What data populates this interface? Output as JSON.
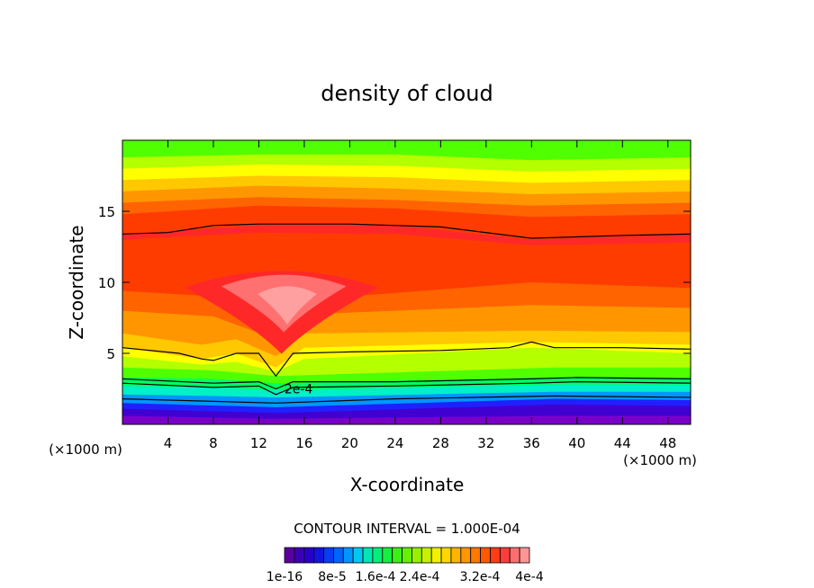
{
  "chart_data": {
    "type": "heatmap",
    "title": "density of cloud",
    "xlabel": "X-coordinate",
    "ylabel": "Z-coordinate",
    "x_unit_left": "(×1000 m)",
    "x_unit_right": "(×1000 m)",
    "xlim": [
      0,
      50
    ],
    "ylim": [
      0,
      20
    ],
    "x_ticks": [
      4,
      8,
      12,
      16,
      20,
      24,
      28,
      32,
      36,
      40,
      44,
      48
    ],
    "y_ticks": [
      5,
      10,
      15
    ],
    "contour_interval_text": "CONTOUR INTERVAL = 1.000E-04",
    "contour_label": "2e-4",
    "contour_label_pos": [
      15.5,
      2.5
    ],
    "colorbar": {
      "colors": [
        "#5a00a0",
        "#3c00b4",
        "#2800c8",
        "#1414dc",
        "#0a3cf0",
        "#0064ff",
        "#0096ff",
        "#00c8f0",
        "#00e6b4",
        "#00f078",
        "#14f03c",
        "#3cf014",
        "#64f000",
        "#96f000",
        "#c8f000",
        "#f0f000",
        "#ffd700",
        "#ffb400",
        "#ff9600",
        "#ff7800",
        "#ff5a00",
        "#ff3c14",
        "#ff3c3c",
        "#ff6e6e",
        "#ff9696"
      ],
      "tick_labels": [
        "1e-16",
        "8e-5",
        "1.6e-4",
        "2.4e-4",
        "3.2e-4",
        "4e-4"
      ]
    },
    "band_colors": [
      "#7a00c8",
      "#4000d0",
      "#2020ff",
      "#0096ff",
      "#00f0c8",
      "#00ff64",
      "#50ff00",
      "#b4ff00",
      "#ffff00",
      "#ffc800",
      "#ff9600",
      "#ff6400",
      "#ff3c00",
      "#ff2828",
      "#ff7070",
      "#ffa0a0"
    ],
    "bands": [
      {
        "level": 0,
        "z": [
          [
            0,
            0.6
          ],
          [
            13.5,
            0.4
          ],
          [
            38,
            0.6
          ],
          [
            50,
            0.6
          ]
        ]
      },
      {
        "level": 1,
        "z": [
          [
            0,
            1.1
          ],
          [
            13.5,
            0.8
          ],
          [
            38,
            1.4
          ],
          [
            50,
            1.3
          ]
        ]
      },
      {
        "level": 2,
        "z": [
          [
            0,
            1.5
          ],
          [
            13.5,
            1.2
          ],
          [
            38,
            1.8
          ],
          [
            50,
            1.7
          ]
        ]
      },
      {
        "level": 3,
        "z": [
          [
            0,
            2.1
          ],
          [
            8,
            2.0
          ],
          [
            13.5,
            1.9
          ],
          [
            38,
            2.3
          ],
          [
            50,
            2.3
          ]
        ]
      },
      {
        "level": 4,
        "z": [
          [
            0,
            2.7
          ],
          [
            8,
            2.6
          ],
          [
            13.5,
            2.4
          ],
          [
            38,
            2.8
          ],
          [
            50,
            2.8
          ]
        ]
      },
      {
        "level": 5,
        "z": [
          [
            0,
            3.3
          ],
          [
            8,
            3.2
          ],
          [
            13.5,
            2.9
          ],
          [
            38,
            3.3
          ],
          [
            50,
            3.3
          ]
        ]
      },
      {
        "level": 6,
        "z": [
          [
            0,
            4.0
          ],
          [
            8,
            3.8
          ],
          [
            13.5,
            3.4
          ],
          [
            38,
            4.0
          ],
          [
            50,
            4.0
          ]
        ]
      },
      {
        "level": 7,
        "z": [
          [
            0,
            4.8
          ],
          [
            7,
            4.2
          ],
          [
            10,
            4.4
          ],
          [
            13.5,
            3.7
          ],
          [
            16,
            4.6
          ],
          [
            36,
            5.4
          ],
          [
            50,
            5.0
          ]
        ]
      },
      {
        "level": 8,
        "z": [
          [
            0,
            5.4
          ],
          [
            7,
            4.6
          ],
          [
            10,
            5.0
          ],
          [
            13.5,
            4.0
          ],
          [
            16,
            5.4
          ],
          [
            36,
            5.8
          ],
          [
            50,
            5.6
          ]
        ]
      },
      {
        "level": 9,
        "z": [
          [
            0,
            6.4
          ],
          [
            7,
            5.6
          ],
          [
            10,
            6.0
          ],
          [
            13.5,
            4.8
          ],
          [
            16,
            6.4
          ],
          [
            36,
            6.6
          ],
          [
            50,
            6.5
          ]
        ]
      },
      {
        "level": 10,
        "z": [
          [
            0,
            8.0
          ],
          [
            8,
            7.6
          ],
          [
            13.5,
            6.0
          ],
          [
            18,
            7.8
          ],
          [
            36,
            8.4
          ],
          [
            50,
            8.2
          ]
        ]
      },
      {
        "level": 11,
        "z": [
          [
            0,
            9.4
          ],
          [
            8,
            9.0
          ],
          [
            13.5,
            7.5
          ],
          [
            20,
            9.0
          ],
          [
            36,
            10.0
          ],
          [
            50,
            9.6
          ]
        ]
      },
      {
        "level": 12,
        "z": [
          [
            0,
            13.0
          ],
          [
            12,
            13.5
          ],
          [
            24,
            13.4
          ],
          [
            36,
            12.6
          ],
          [
            50,
            12.8
          ]
        ]
      },
      {
        "level": 13,
        "z": [
          [
            0,
            13.4
          ],
          [
            12,
            14.0
          ],
          [
            24,
            14.0
          ],
          [
            36,
            13.0
          ],
          [
            50,
            13.4
          ]
        ]
      },
      {
        "level": 12,
        "z": [
          [
            0,
            14.8
          ],
          [
            12,
            15.4
          ],
          [
            24,
            15.2
          ],
          [
            36,
            14.6
          ],
          [
            50,
            14.8
          ]
        ]
      },
      {
        "level": 11,
        "z": [
          [
            0,
            15.6
          ],
          [
            12,
            16.0
          ],
          [
            24,
            15.8
          ],
          [
            36,
            15.4
          ],
          [
            50,
            15.6
          ]
        ]
      },
      {
        "level": 10,
        "z": [
          [
            0,
            16.4
          ],
          [
            12,
            16.8
          ],
          [
            24,
            16.6
          ],
          [
            36,
            16.2
          ],
          [
            50,
            16.4
          ]
        ]
      },
      {
        "level": 9,
        "z": [
          [
            0,
            17.2
          ],
          [
            12,
            17.5
          ],
          [
            24,
            17.4
          ],
          [
            36,
            17.0
          ],
          [
            50,
            17.2
          ]
        ]
      },
      {
        "level": 8,
        "z": [
          [
            0,
            18.0
          ],
          [
            12,
            18.3
          ],
          [
            24,
            18.2
          ],
          [
            36,
            17.8
          ],
          [
            50,
            18.0
          ]
        ]
      },
      {
        "level": 7,
        "z": [
          [
            0,
            18.8
          ],
          [
            12,
            19.0
          ],
          [
            24,
            19.0
          ],
          [
            36,
            18.6
          ],
          [
            50,
            18.8
          ]
        ]
      },
      {
        "level": 6,
        "z": [
          [
            0,
            20
          ],
          [
            50,
            20
          ]
        ]
      }
    ],
    "cores": [
      {
        "level": 13,
        "center": [
          14,
          8.6
        ],
        "rx": 8.5,
        "ry": 2.6
      },
      {
        "level": 14,
        "center": [
          14.2,
          9.0
        ],
        "rx": 5.5,
        "ry": 1.8
      },
      {
        "level": 15,
        "center": [
          14.5,
          8.7
        ],
        "rx": 2.6,
        "ry": 1.2
      }
    ],
    "contours": [
      [
        [
          0,
          13.4
        ],
        [
          4,
          13.5
        ],
        [
          8,
          14.0
        ],
        [
          12,
          14.1
        ],
        [
          20,
          14.1
        ],
        [
          28,
          13.9
        ],
        [
          36,
          13.1
        ],
        [
          44,
          13.3
        ],
        [
          50,
          13.4
        ]
      ],
      [
        [
          0,
          5.4
        ],
        [
          5,
          5.0
        ],
        [
          7,
          4.6
        ],
        [
          8,
          4.5
        ],
        [
          10,
          5.0
        ],
        [
          12,
          5.0
        ],
        [
          13.5,
          3.4
        ],
        [
          15,
          5.0
        ],
        [
          20,
          5.1
        ],
        [
          28,
          5.2
        ],
        [
          34,
          5.4
        ],
        [
          36,
          5.8
        ],
        [
          38,
          5.4
        ],
        [
          40,
          5.4
        ],
        [
          44,
          5.4
        ],
        [
          50,
          5.3
        ]
      ],
      [
        [
          0,
          3.2
        ],
        [
          8,
          2.9
        ],
        [
          12,
          3.0
        ],
        [
          13.5,
          2.5
        ],
        [
          15,
          3.0
        ],
        [
          24,
          3.0
        ],
        [
          36,
          3.2
        ],
        [
          40,
          3.3
        ],
        [
          50,
          3.2
        ]
      ],
      [
        [
          0,
          2.9
        ],
        [
          8,
          2.6
        ],
        [
          12,
          2.7
        ],
        [
          13.5,
          2.1
        ],
        [
          15,
          2.6
        ],
        [
          24,
          2.7
        ],
        [
          36,
          2.9
        ],
        [
          40,
          3.0
        ],
        [
          50,
          2.9
        ]
      ],
      [
        [
          0,
          1.8
        ],
        [
          13.5,
          1.5
        ],
        [
          24,
          1.8
        ],
        [
          38,
          2.0
        ],
        [
          50,
          1.9
        ]
      ]
    ]
  }
}
